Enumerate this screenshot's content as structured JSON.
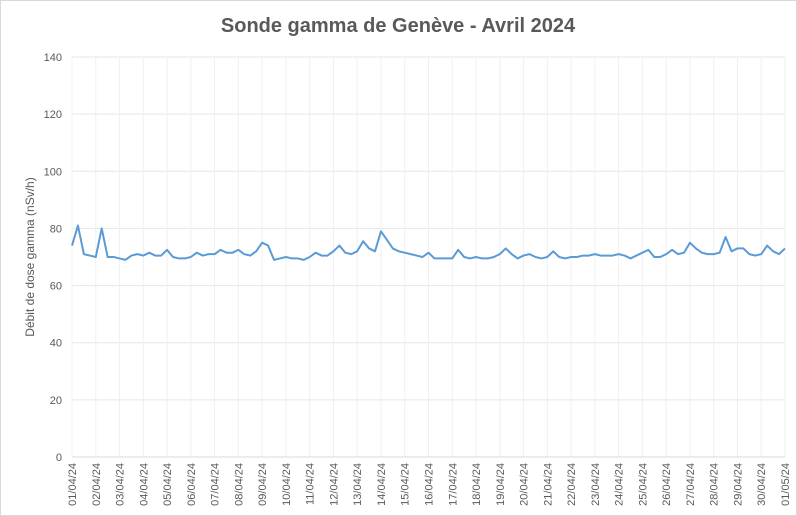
{
  "chart_data": {
    "type": "line",
    "title": "Sonde gamma de Genève - Avril 2024",
    "y_label": "Débit de dose gamma (nSv/h)",
    "categories": [
      "01/04/24",
      null,
      null,
      null,
      "02/04/24",
      null,
      null,
      null,
      "03/04/24",
      null,
      null,
      null,
      "04/04/24",
      null,
      null,
      null,
      "05/04/24",
      null,
      null,
      null,
      "06/04/24",
      null,
      null,
      null,
      "07/04/24",
      null,
      null,
      null,
      "08/04/24",
      null,
      null,
      null,
      "09/04/24",
      null,
      null,
      null,
      "10/04/24",
      null,
      null,
      null,
      "11/04/24",
      null,
      null,
      null,
      "12/04/24",
      null,
      null,
      null,
      "13/04/24",
      null,
      null,
      null,
      "14/04/24",
      null,
      null,
      null,
      "15/04/24",
      null,
      null,
      null,
      "16/04/24",
      null,
      null,
      null,
      "17/04/24",
      null,
      null,
      null,
      "18/04/24",
      null,
      null,
      null,
      "19/04/24",
      null,
      null,
      null,
      "20/04/24",
      null,
      null,
      null,
      "21/04/24",
      null,
      null,
      null,
      "22/04/24",
      null,
      null,
      null,
      "23/04/24",
      null,
      null,
      null,
      "24/04/24",
      null,
      null,
      null,
      "25/04/24",
      null,
      null,
      null,
      "26/04/24",
      null,
      null,
      null,
      "27/04/24",
      null,
      null,
      null,
      "28/04/24",
      null,
      null,
      null,
      "29/04/24",
      null,
      null,
      null,
      "30/04/24",
      null,
      null,
      null,
      "01/05/24"
    ],
    "series": [
      {
        "name": "Débit de dose gamma",
        "color": "#5b9bd5",
        "values": [
          74,
          81,
          71,
          70.5,
          70,
          80,
          70,
          70,
          69.5,
          69,
          70.5,
          71,
          70.5,
          71.5,
          70.5,
          70.5,
          72.5,
          70,
          69.5,
          69.5,
          70,
          71.5,
          70.5,
          71,
          71,
          72.5,
          71.5,
          71.5,
          72.5,
          71,
          70.5,
          72,
          75,
          74,
          69,
          69.5,
          70,
          69.5,
          69.5,
          69,
          70,
          71.5,
          70.5,
          70.5,
          72,
          74,
          71.5,
          71,
          72,
          75.5,
          73,
          72,
          79,
          76,
          73,
          72,
          71.5,
          71,
          70.5,
          70,
          71.5,
          69.5,
          69.5,
          69.5,
          69.5,
          72.5,
          70,
          69.5,
          70,
          69.5,
          69.5,
          70,
          71,
          73,
          71,
          69.5,
          70.5,
          71,
          70,
          69.5,
          70,
          72,
          70,
          69.5,
          70,
          70,
          70.5,
          70.5,
          71,
          70.5,
          70.5,
          70.5,
          71,
          70.5,
          69.5,
          70.5,
          71.5,
          72.5,
          70,
          70,
          71,
          72.5,
          71,
          71.5,
          75,
          73,
          71.5,
          71,
          71,
          71.5,
          77,
          72,
          73,
          73,
          71,
          70.5,
          71,
          74,
          72,
          71,
          73
        ]
      }
    ],
    "ylim": [
      0,
      140
    ],
    "yticks": [
      0,
      20,
      40,
      60,
      80,
      100,
      120,
      140
    ],
    "grid": true
  }
}
